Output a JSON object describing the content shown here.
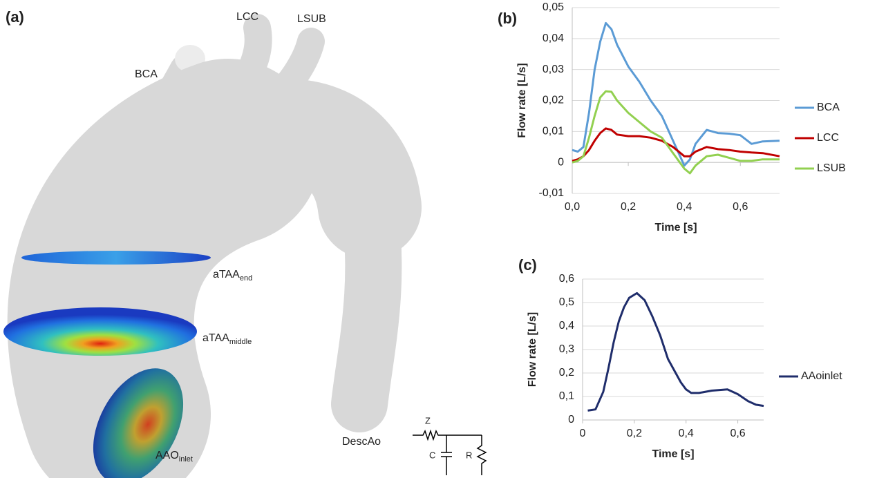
{
  "panel_a": {
    "label": "(a)",
    "vessels": [
      "BCA",
      "LCC",
      "LSUB",
      "DescAo"
    ],
    "planes": [
      {
        "main": "aTAA",
        "sub": "end"
      },
      {
        "main": "aTAA",
        "sub": "middle"
      },
      {
        "main": "AAO",
        "sub": "inlet"
      }
    ],
    "circuit": [
      "Z",
      "C",
      "R"
    ]
  },
  "chart_data": [
    {
      "type": "line",
      "panel_label": "(b)",
      "x_label": "Time [s]",
      "y_label": "Flow rate [L/s]",
      "x": [
        0,
        0.02,
        0.04,
        0.06,
        0.08,
        0.1,
        0.12,
        0.14,
        0.16,
        0.2,
        0.24,
        0.28,
        0.32,
        0.36,
        0.4,
        0.42,
        0.44,
        0.48,
        0.52,
        0.56,
        0.6,
        0.64,
        0.68,
        0.74
      ],
      "series": [
        {
          "name": "BCA",
          "color": "#5b9bd5",
          "values": [
            0.004,
            0.0035,
            0.005,
            0.016,
            0.03,
            0.039,
            0.045,
            0.043,
            0.038,
            0.031,
            0.026,
            0.02,
            0.015,
            0.007,
            -0.001,
            0.001,
            0.006,
            0.0105,
            0.0095,
            0.0093,
            0.0088,
            0.006,
            0.0068,
            0.007
          ]
        },
        {
          "name": "LCC",
          "color": "#c00000",
          "values": [
            0.0005,
            0.001,
            0.002,
            0.004,
            0.007,
            0.0095,
            0.011,
            0.0105,
            0.009,
            0.0085,
            0.0085,
            0.008,
            0.007,
            0.005,
            0.002,
            0.002,
            0.0035,
            0.005,
            0.0043,
            0.004,
            0.0035,
            0.0032,
            0.003,
            0.002
          ]
        },
        {
          "name": "LSUB",
          "color": "#92d050",
          "values": [
            0,
            0.0005,
            0.002,
            0.008,
            0.015,
            0.021,
            0.023,
            0.0228,
            0.02,
            0.016,
            0.013,
            0.01,
            0.008,
            0.003,
            -0.002,
            -0.0035,
            -0.001,
            0.002,
            0.0025,
            0.0015,
            0.0005,
            0.0005,
            0.001,
            0.001
          ]
        }
      ],
      "xlim": [
        0,
        0.74
      ],
      "xticks": [
        {
          "value": 0,
          "label": "0,0"
        },
        {
          "value": 0.2,
          "label": "0,2"
        },
        {
          "value": 0.4,
          "label": "0,4"
        },
        {
          "value": 0.6,
          "label": "0,6"
        }
      ],
      "ylim": [
        -0.01,
        0.05
      ],
      "yticks": [
        {
          "value": -0.01,
          "label": "-0,01"
        },
        0,
        {
          "value": 0.01,
          "label": "0,01"
        },
        {
          "value": 0.02,
          "label": "0,02"
        },
        {
          "value": 0.03,
          "label": "0,03"
        },
        {
          "value": 0.04,
          "label": "0,04"
        },
        {
          "value": 0.05,
          "label": "0,05"
        }
      ],
      "grid": true,
      "legend": "right"
    },
    {
      "type": "line",
      "panel_label": "(c)",
      "x_label": "Time [s]",
      "y_label": "Flow rate [L/s]",
      "x": [
        0.02,
        0.05,
        0.08,
        0.1,
        0.12,
        0.14,
        0.16,
        0.18,
        0.21,
        0.24,
        0.27,
        0.3,
        0.33,
        0.36,
        0.38,
        0.4,
        0.42,
        0.45,
        0.5,
        0.56,
        0.6,
        0.64,
        0.67,
        0.7
      ],
      "series": [
        {
          "name": "AAoinlet",
          "color": "#1f2d6b",
          "values": [
            0.04,
            0.045,
            0.12,
            0.22,
            0.33,
            0.42,
            0.48,
            0.52,
            0.54,
            0.51,
            0.44,
            0.36,
            0.26,
            0.2,
            0.16,
            0.13,
            0.115,
            0.115,
            0.125,
            0.13,
            0.11,
            0.08,
            0.065,
            0.06
          ]
        }
      ],
      "xlim": [
        0,
        0.7
      ],
      "xticks": [
        0,
        {
          "value": 0.2,
          "label": "0,2"
        },
        {
          "value": 0.4,
          "label": "0,4"
        },
        {
          "value": 0.6,
          "label": "0,6"
        }
      ],
      "ylim": [
        0,
        0.6
      ],
      "yticks": [
        0,
        {
          "value": 0.1,
          "label": "0,1"
        },
        {
          "value": 0.2,
          "label": "0,2"
        },
        {
          "value": 0.3,
          "label": "0,3"
        },
        {
          "value": 0.4,
          "label": "0,4"
        },
        {
          "value": 0.5,
          "label": "0,5"
        },
        {
          "value": 0.6,
          "label": "0,6"
        }
      ],
      "grid": true,
      "legend": "right"
    }
  ]
}
